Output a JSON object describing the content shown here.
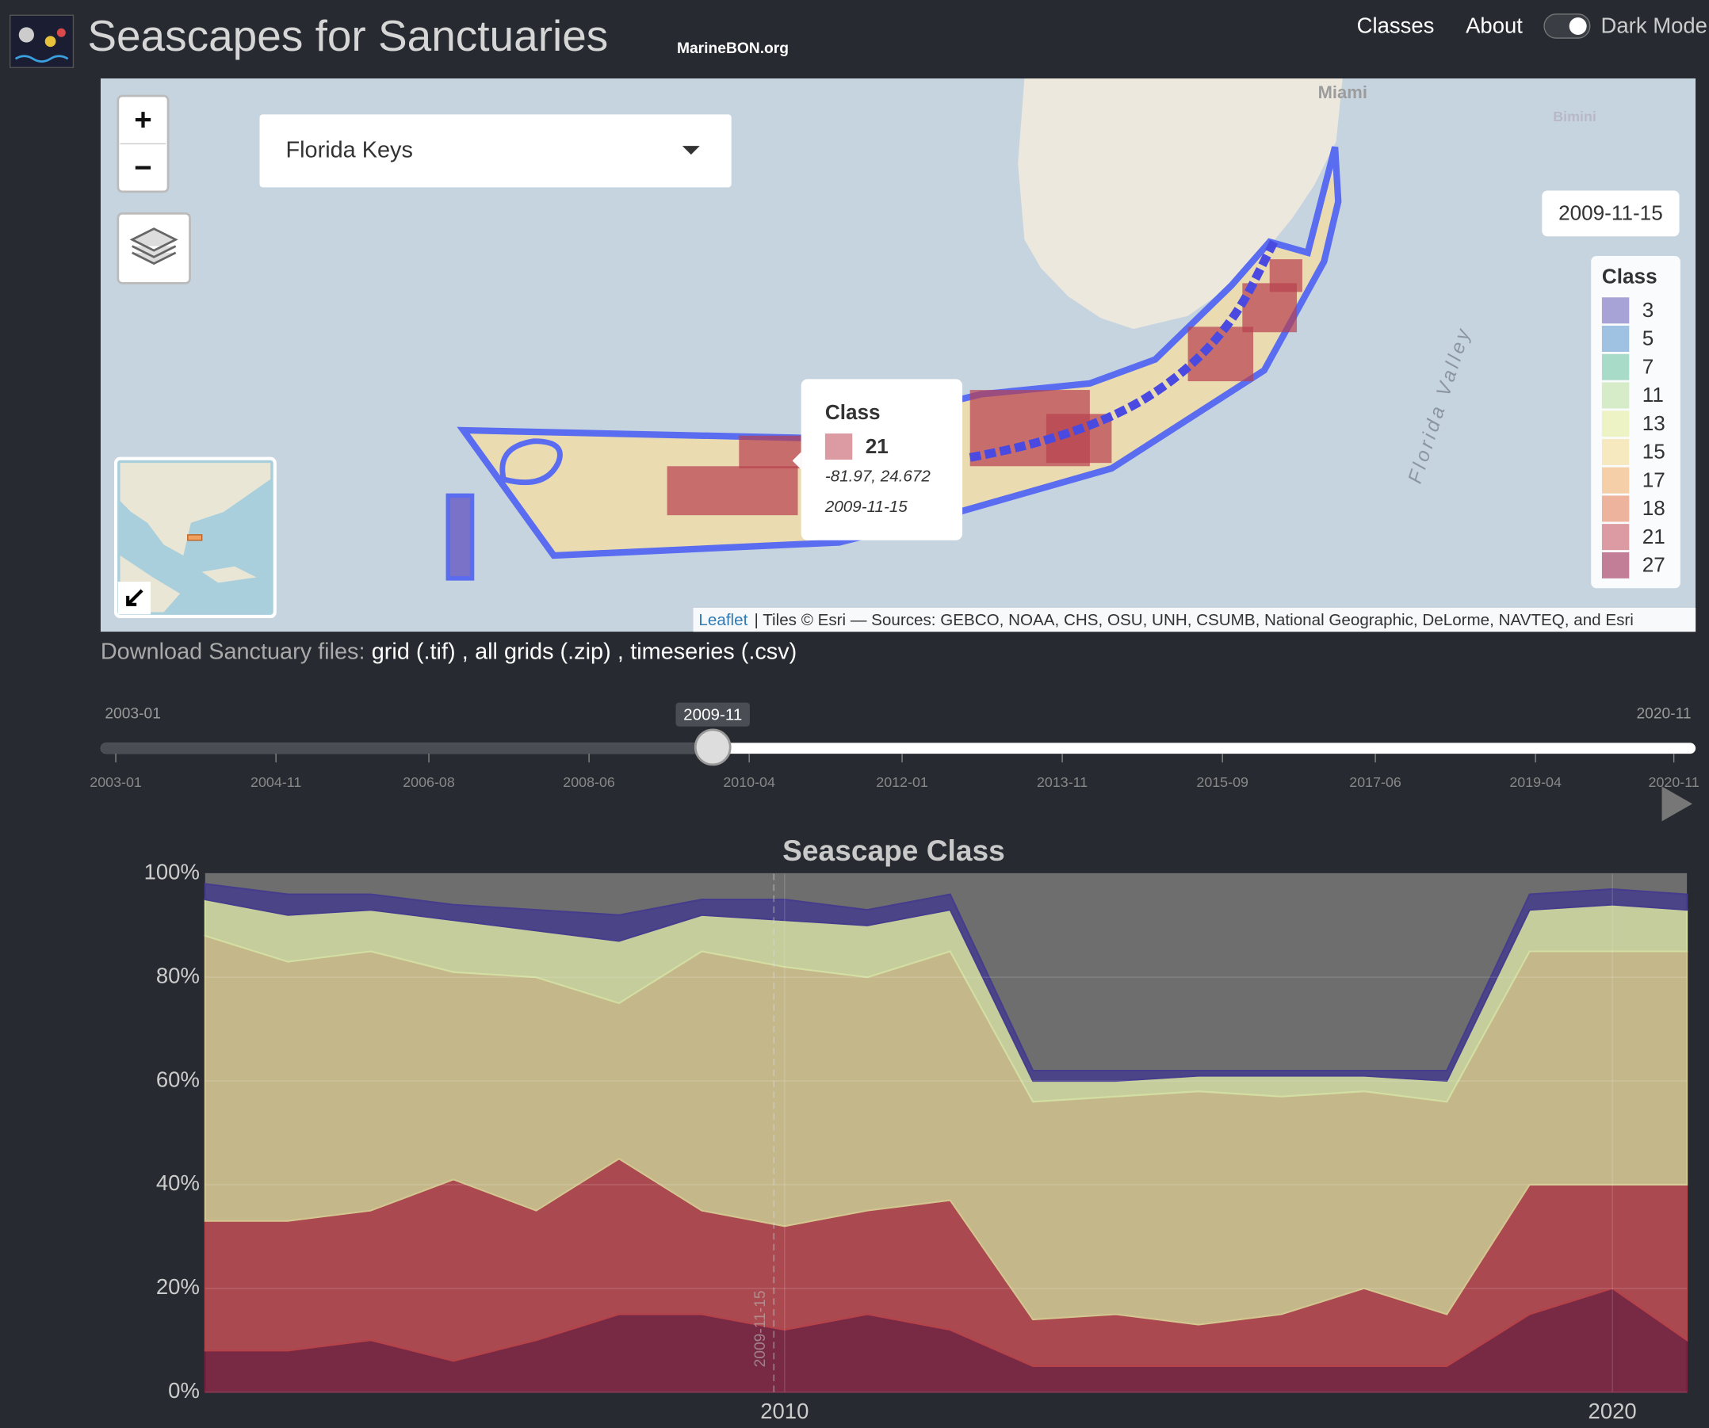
{
  "header": {
    "title": "Seascapes for Sanctuaries",
    "subtitle": "MarineBON.org",
    "nav": [
      "Classes",
      "About",
      "Dark Mode"
    ]
  },
  "map": {
    "zoom_in": "+",
    "zoom_out": "−",
    "dropdown": "Florida Keys",
    "date_badge": "2009-11-15",
    "places": [
      "Miami",
      "Bimini",
      "Florida Valley"
    ],
    "legend": {
      "title": "Class",
      "items": [
        {
          "label": "3",
          "color": "#a7a3d6"
        },
        {
          "label": "5",
          "color": "#9fc1e2"
        },
        {
          "label": "7",
          "color": "#a9dcc8"
        },
        {
          "label": "11",
          "color": "#d6ecc8"
        },
        {
          "label": "13",
          "color": "#eef3c6"
        },
        {
          "label": "15",
          "color": "#f6e9bf"
        },
        {
          "label": "17",
          "color": "#f5cfa8"
        },
        {
          "label": "18",
          "color": "#eeb39c"
        },
        {
          "label": "21",
          "color": "#dc9aa2"
        },
        {
          "label": "27",
          "color": "#c27e97"
        }
      ]
    },
    "popup": {
      "title": "Class",
      "value": "21",
      "coords": "-81.97, 24.672",
      "date": "2009-11-15"
    },
    "attribution": {
      "link": "Leaflet",
      "text": "| Tiles © Esri — Sources: GEBCO, NOAA, CHS, OSU, UNH, CSUMB, National Geographic, DeLorme, NAVTEQ, and Esri"
    }
  },
  "download": {
    "label": "Download Sanctuary files:",
    "items": [
      "grid (.tif)",
      ",",
      "all grids (.zip)",
      ",",
      "timeseries (.csv)"
    ]
  },
  "slider": {
    "min_label": "2003-01",
    "max_label": "2020-11",
    "value_label": "2009-11",
    "ticks": [
      "2003-01",
      "2004-11",
      "2006-08",
      "2008-06",
      "2010-04",
      "2012-01",
      "2013-11",
      "2015-09",
      "2017-06",
      "2019-04",
      "2020-11"
    ]
  },
  "chart_data": {
    "type": "stacked_area",
    "title": "Seascape Class",
    "x": [
      2003,
      2004,
      2005,
      2006,
      2007,
      2008,
      2009,
      2010,
      2011,
      2012,
      2013,
      2014,
      2015,
      2016,
      2017,
      2018,
      2019,
      2020,
      2020.9
    ],
    "series": [
      {
        "name": "27",
        "color": "#7a1f3d",
        "values": [
          8,
          8,
          10,
          6,
          10,
          15,
          15,
          12,
          15,
          12,
          5,
          5,
          5,
          5,
          5,
          5,
          15,
          20,
          10
        ]
      },
      {
        "name": "21",
        "color": "#b5434a",
        "values": [
          25,
          25,
          25,
          35,
          25,
          30,
          20,
          20,
          20,
          25,
          9,
          10,
          8,
          10,
          15,
          10,
          25,
          20,
          30
        ]
      },
      {
        "name": "15",
        "color": "#d4c690",
        "values": [
          55,
          50,
          50,
          40,
          45,
          30,
          50,
          50,
          45,
          48,
          42,
          42,
          45,
          42,
          38,
          41,
          45,
          45,
          45
        ]
      },
      {
        "name": "13",
        "color": "#d3dea3",
        "values": [
          7,
          9,
          8,
          10,
          9,
          12,
          7,
          9,
          10,
          8,
          4,
          3,
          3,
          4,
          3,
          4,
          8,
          9,
          8
        ]
      },
      {
        "name": "3",
        "color": "#453d8c",
        "values": [
          3,
          4,
          3,
          3,
          4,
          5,
          3,
          4,
          3,
          3,
          2,
          2,
          1,
          1,
          1,
          2,
          3,
          3,
          3
        ]
      }
    ],
    "xlim": [
      2003.0,
      2020.9
    ],
    "ylim": [
      0,
      100
    ],
    "xticks": [
      2010,
      2020
    ],
    "yticks": [
      {
        "value": 0,
        "label": "0%"
      },
      {
        "value": 20,
        "label": "20%"
      },
      {
        "value": 40,
        "label": "40%"
      },
      {
        "value": 60,
        "label": "60%"
      },
      {
        "value": 80,
        "label": "80%"
      },
      {
        "value": 100,
        "label": "100%"
      }
    ],
    "annotation": {
      "x": 2009.87,
      "label": "2009-11-15"
    },
    "grid": true
  }
}
